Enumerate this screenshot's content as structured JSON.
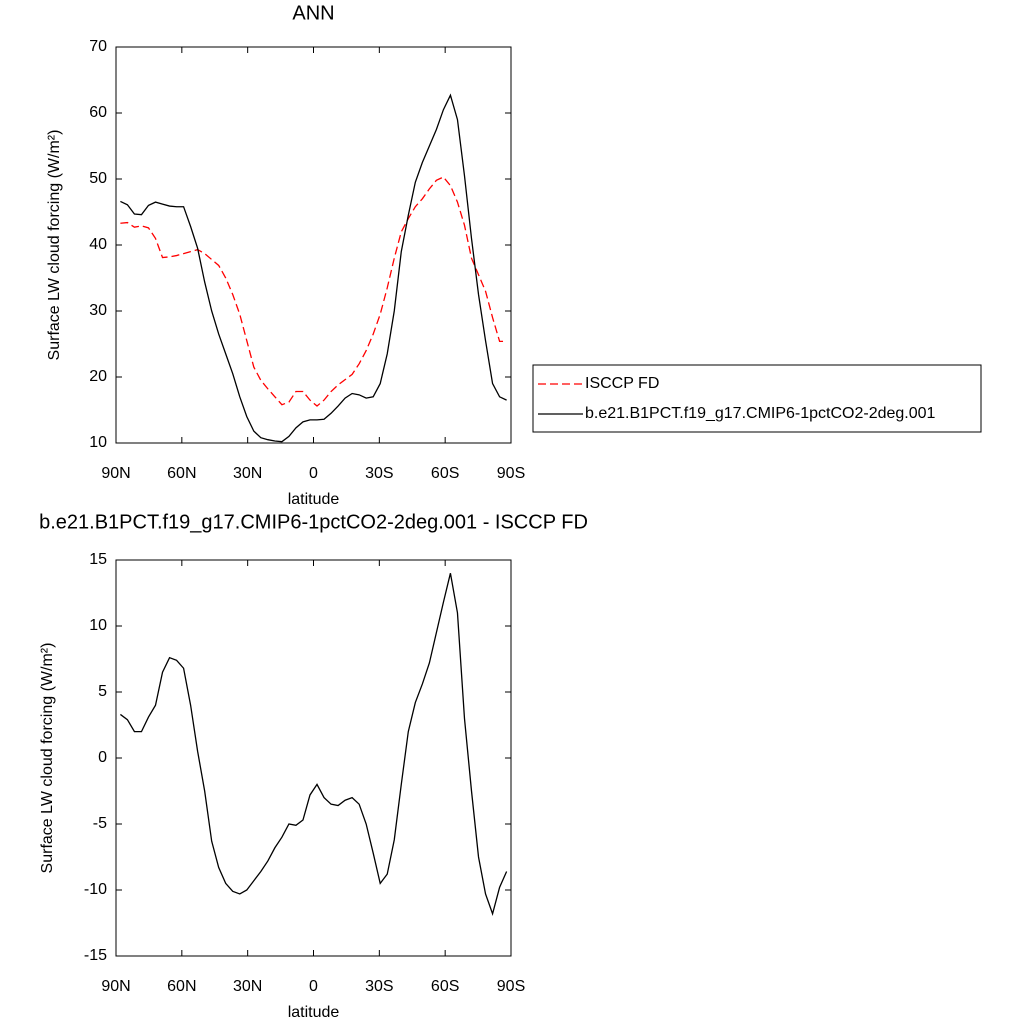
{
  "chart_data": [
    {
      "type": "line",
      "title": "ANN",
      "x_label": "latitude",
      "y_label": "Surface LW cloud forcing (W/m²)",
      "x": [
        88,
        84.8,
        81.6,
        78.4,
        75.2,
        72,
        68.8,
        65.6,
        62.4,
        59.2,
        56,
        52.8,
        49.6,
        46.4,
        43.2,
        40,
        36.8,
        33.6,
        30.4,
        27.2,
        24,
        20.8,
        17.6,
        14.4,
        11.2,
        8,
        4.8,
        1.6,
        -1.6,
        -4.8,
        -8,
        -11.2,
        -14.4,
        -17.6,
        -20.8,
        -24,
        -27.2,
        -30.4,
        -33.6,
        -36.8,
        -40,
        -43.2,
        -46.4,
        -49.6,
        -52.8,
        -56,
        -59.2,
        -62.4,
        -65.6,
        -68.8,
        -72,
        -75.2,
        -78.4,
        -81.6,
        -84.8,
        -88
      ],
      "series": [
        {
          "name": "ISCCP FD",
          "color": "#ff0000",
          "dashed": true,
          "values": [
            43.3,
            43.4,
            42.7,
            42.9,
            42.6,
            41.0,
            38.1,
            38.2,
            38.4,
            38.7,
            39.0,
            39.3,
            38.7,
            37.8,
            36.9,
            35.0,
            32.5,
            29.5,
            25.5,
            21.5,
            19.5,
            18.2,
            17.0,
            15.8,
            16.2,
            17.8,
            17.8,
            16.5,
            15.6,
            16.5,
            17.8,
            18.8,
            19.6,
            20.4,
            22.0,
            24.0,
            26.5,
            29.5,
            33.5,
            38.0,
            42.0,
            44.0,
            45.8,
            47.0,
            48.5,
            49.8,
            50.3,
            49.0,
            46.5,
            43.0,
            38.0,
            35.5,
            33.0,
            29.0,
            25.4,
            25.4
          ]
        },
        {
          "name": "b.e21.B1PCT.f19_g17.CMIP6-1pctCO2-2deg.001",
          "color": "#000000",
          "dashed": false,
          "values": [
            46.6,
            46.1,
            44.7,
            44.6,
            46.0,
            46.5,
            46.2,
            45.9,
            45.8,
            45.8,
            42.8,
            39.5,
            34.4,
            30.0,
            26.5,
            23.5,
            20.5,
            17.0,
            14.0,
            11.8,
            10.8,
            10.5,
            10.3,
            10.2,
            11.0,
            12.3,
            13.2,
            13.5,
            13.5,
            13.6,
            14.5,
            15.6,
            16.8,
            17.5,
            17.3,
            16.8,
            17.0,
            19.0,
            23.5,
            30.0,
            39.0,
            44.5,
            49.5,
            52.5,
            55.0,
            57.5,
            60.5,
            62.7,
            59.0,
            50.5,
            41.0,
            32.5,
            25.5,
            19.0,
            17.0,
            16.5
          ]
        }
      ],
      "xlim": [
        90,
        -90
      ],
      "xticks": [
        {
          "value": 90,
          "label": "90N"
        },
        {
          "value": 60,
          "label": "60N"
        },
        {
          "value": 30,
          "label": "30N"
        },
        0,
        {
          "value": -30,
          "label": "30S"
        },
        {
          "value": -60,
          "label": "60S"
        },
        {
          "value": -90,
          "label": "90S"
        }
      ],
      "ylim": [
        10,
        70
      ],
      "yticks": [
        10,
        20,
        30,
        40,
        50,
        60,
        70
      ],
      "legend": "right"
    },
    {
      "type": "line",
      "title": "b.e21.B1PCT.f19_g17.CMIP6-1pctCO2-2deg.001 - ISCCP FD",
      "x_label": "latitude",
      "y_label": "Surface LW cloud forcing (W/m²)",
      "x": [
        88,
        84.8,
        81.6,
        78.4,
        75.2,
        72,
        68.8,
        65.6,
        62.4,
        59.2,
        56,
        52.8,
        49.6,
        46.4,
        43.2,
        40,
        36.8,
        33.6,
        30.4,
        27.2,
        24,
        20.8,
        17.6,
        14.4,
        11.2,
        8,
        4.8,
        1.6,
        -1.6,
        -4.8,
        -8,
        -11.2,
        -14.4,
        -17.6,
        -20.8,
        -24,
        -27.2,
        -30.4,
        -33.6,
        -36.8,
        -40,
        -43.2,
        -46.4,
        -49.6,
        -52.8,
        -56,
        -59.2,
        -62.4,
        -65.6,
        -68.8,
        -72,
        -75.2,
        -78.4,
        -81.6,
        -84.8,
        -88
      ],
      "values": [
        3.3,
        2.9,
        2.0,
        2.0,
        3.1,
        4.0,
        6.5,
        7.6,
        7.4,
        6.8,
        4.0,
        0.5,
        -2.5,
        -6.3,
        -8.3,
        -9.5,
        -10.1,
        -10.3,
        -10.0,
        -9.3,
        -8.6,
        -7.8,
        -6.8,
        -6.0,
        -5.0,
        -5.1,
        -4.7,
        -2.8,
        -2.0,
        -3.0,
        -3.5,
        -3.6,
        -3.2,
        -3.0,
        -3.5,
        -5.0,
        -7.2,
        -9.5,
        -8.8,
        -6.2,
        -2.0,
        2.0,
        4.2,
        5.6,
        7.2,
        9.5,
        11.8,
        14.0,
        11.0,
        3.0,
        -2.5,
        -7.5,
        -10.3,
        -11.8,
        -9.8,
        -8.6
      ],
      "color": "#000000",
      "xlim": [
        90,
        -90
      ],
      "xticks": [
        {
          "value": 90,
          "label": "90N"
        },
        {
          "value": 60,
          "label": "60N"
        },
        {
          "value": 30,
          "label": "30N"
        },
        0,
        {
          "value": -30,
          "label": "30S"
        },
        {
          "value": -60,
          "label": "60S"
        },
        {
          "value": -90,
          "label": "90S"
        }
      ],
      "ylim": [
        -15,
        15
      ],
      "yticks": [
        -15,
        -10,
        -5,
        0,
        5,
        10,
        15
      ]
    }
  ]
}
